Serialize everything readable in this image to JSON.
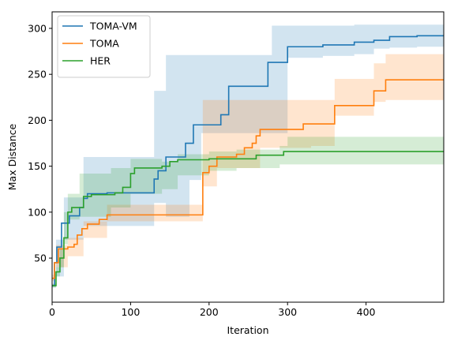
{
  "chart_data": {
    "type": "line",
    "xlabel": "Iteration",
    "ylabel": "Max Distance",
    "xlim": [
      0,
      499
    ],
    "ylim": [
      2,
      318
    ],
    "xticks": [
      0,
      100,
      200,
      300,
      400
    ],
    "yticks": [
      50,
      100,
      150,
      200,
      250,
      300
    ],
    "legend_position": "top-left",
    "grid": false,
    "series": [
      {
        "name": "TOMA-VM",
        "color": "#1f77b4",
        "steps": [
          [
            0,
            20
          ],
          [
            3,
            45
          ],
          [
            6,
            62
          ],
          [
            12,
            88
          ],
          [
            20,
            88
          ],
          [
            22,
            96
          ],
          [
            35,
            105
          ],
          [
            40,
            115
          ],
          [
            45,
            120
          ],
          [
            70,
            121
          ],
          [
            130,
            136
          ],
          [
            135,
            145
          ],
          [
            145,
            160
          ],
          [
            170,
            175
          ],
          [
            180,
            195
          ],
          [
            215,
            206
          ],
          [
            225,
            237
          ],
          [
            275,
            263
          ],
          [
            300,
            280
          ],
          [
            345,
            282
          ],
          [
            385,
            285
          ],
          [
            410,
            287
          ],
          [
            430,
            291
          ],
          [
            465,
            292
          ],
          [
            499,
            292
          ]
        ],
        "band": [
          [
            0,
            18,
            22
          ],
          [
            5,
            30,
            70
          ],
          [
            15,
            70,
            116
          ],
          [
            40,
            85,
            160
          ],
          [
            130,
            110,
            232
          ],
          [
            145,
            95,
            271
          ],
          [
            175,
            135,
            271
          ],
          [
            190,
            186,
            271
          ],
          [
            205,
            186,
            271
          ],
          [
            225,
            186,
            271
          ],
          [
            280,
            186,
            303
          ],
          [
            300,
            268,
            303
          ],
          [
            345,
            270,
            303
          ],
          [
            385,
            272,
            304
          ],
          [
            410,
            278,
            304
          ],
          [
            430,
            279,
            304
          ],
          [
            465,
            280,
            304
          ],
          [
            499,
            280,
            304
          ]
        ]
      },
      {
        "name": "TOMA",
        "color": "#ff7f0e",
        "steps": [
          [
            0,
            28
          ],
          [
            3,
            45
          ],
          [
            8,
            60
          ],
          [
            20,
            62
          ],
          [
            28,
            65
          ],
          [
            32,
            75
          ],
          [
            38,
            82
          ],
          [
            45,
            87
          ],
          [
            60,
            92
          ],
          [
            70,
            97
          ],
          [
            190,
            97
          ],
          [
            192,
            143
          ],
          [
            200,
            150
          ],
          [
            210,
            160
          ],
          [
            235,
            163
          ],
          [
            245,
            170
          ],
          [
            255,
            175
          ],
          [
            260,
            183
          ],
          [
            265,
            190
          ],
          [
            320,
            196
          ],
          [
            360,
            216
          ],
          [
            410,
            232
          ],
          [
            425,
            244
          ],
          [
            499,
            244
          ]
        ],
        "band": [
          [
            0,
            25,
            32
          ],
          [
            5,
            40,
            64
          ],
          [
            20,
            52,
            72
          ],
          [
            40,
            72,
            90
          ],
          [
            70,
            90,
            108
          ],
          [
            190,
            90,
            108
          ],
          [
            192,
            128,
            222
          ],
          [
            210,
            148,
            222
          ],
          [
            250,
            148,
            222
          ],
          [
            265,
            170,
            222
          ],
          [
            330,
            172,
            222
          ],
          [
            360,
            205,
            245
          ],
          [
            410,
            220,
            262
          ],
          [
            425,
            222,
            272
          ],
          [
            499,
            222,
            272
          ]
        ]
      },
      {
        "name": "HER",
        "color": "#2ca02c",
        "steps": [
          [
            0,
            20
          ],
          [
            5,
            35
          ],
          [
            10,
            50
          ],
          [
            15,
            72
          ],
          [
            20,
            100
          ],
          [
            25,
            105
          ],
          [
            40,
            117
          ],
          [
            50,
            119
          ],
          [
            80,
            121
          ],
          [
            90,
            127
          ],
          [
            100,
            142
          ],
          [
            105,
            148
          ],
          [
            140,
            150
          ],
          [
            150,
            155
          ],
          [
            160,
            157
          ],
          [
            200,
            158
          ],
          [
            260,
            162
          ],
          [
            295,
            166
          ],
          [
            499,
            166
          ]
        ],
        "band": [
          [
            0,
            18,
            22
          ],
          [
            5,
            30,
            40
          ],
          [
            10,
            40,
            60
          ],
          [
            15,
            65,
            100
          ],
          [
            20,
            92,
            120
          ],
          [
            35,
            95,
            142
          ],
          [
            75,
            105,
            148
          ],
          [
            100,
            120,
            158
          ],
          [
            140,
            125,
            155
          ],
          [
            160,
            140,
            163
          ],
          [
            200,
            145,
            166
          ],
          [
            235,
            148,
            168
          ],
          [
            290,
            152,
            172
          ],
          [
            300,
            152,
            182
          ],
          [
            499,
            152,
            182
          ]
        ]
      }
    ]
  }
}
